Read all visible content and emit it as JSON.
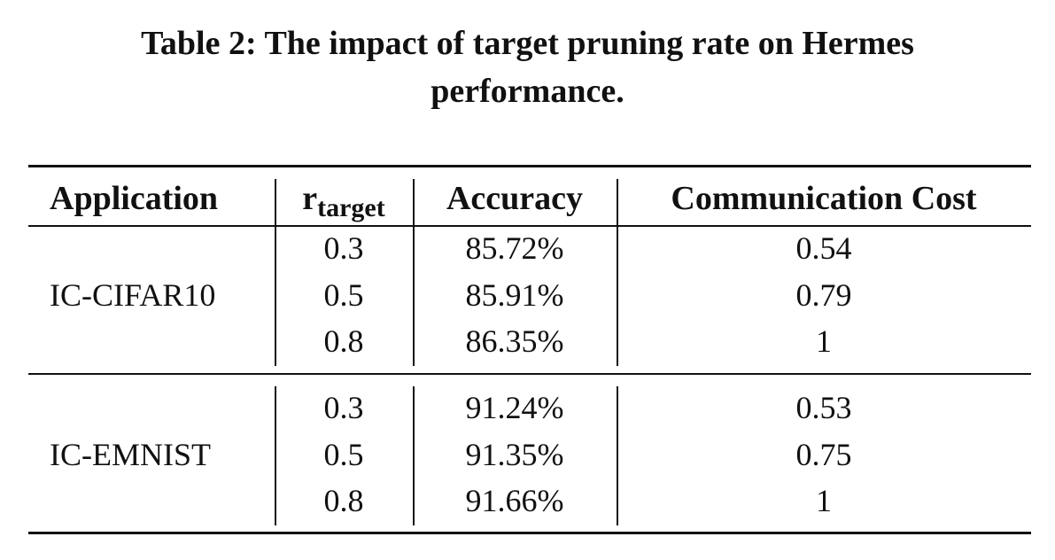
{
  "caption": {
    "line1": "Table 2: The impact of target pruning rate on Hermes",
    "line2": "performance."
  },
  "table": {
    "headers": {
      "application": "Application",
      "r_base": "r",
      "r_sub": "target",
      "accuracy": "Accuracy",
      "comm_cost": "Communication Cost"
    },
    "groups": [
      {
        "application": "IC-CIFAR10",
        "rows": [
          {
            "r": "0.3",
            "accuracy": "85.72%",
            "cost": "0.54"
          },
          {
            "r": "0.5",
            "accuracy": "85.91%",
            "cost": "0.79"
          },
          {
            "r": "0.8",
            "accuracy": "86.35%",
            "cost": "1"
          }
        ]
      },
      {
        "application": "IC-EMNIST",
        "rows": [
          {
            "r": "0.3",
            "accuracy": "91.24%",
            "cost": "0.53"
          },
          {
            "r": "0.5",
            "accuracy": "91.35%",
            "cost": "0.75"
          },
          {
            "r": "0.8",
            "accuracy": "91.66%",
            "cost": "1"
          }
        ]
      }
    ]
  }
}
